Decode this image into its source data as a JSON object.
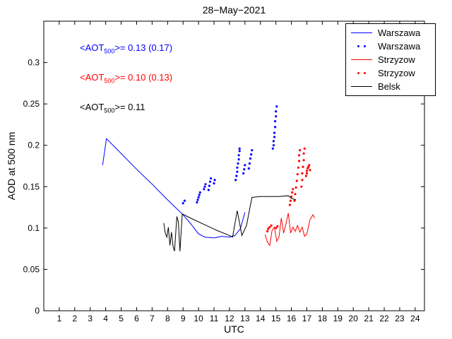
{
  "title": "28−May−2021",
  "axes": {
    "xlabel": "UTC",
    "ylabel": "AOD at 500 nm"
  },
  "annotations": [
    {
      "prefix": "<AOT",
      "sub": "500",
      "suffix": ">= 0.13 (0.17)",
      "color": "#0000ff"
    },
    {
      "prefix": "<AOT",
      "sub": "500",
      "suffix": ">= 0.10 (0.13)",
      "color": "#ff0000"
    },
    {
      "prefix": "<AOT",
      "sub": "500",
      "suffix": ">= 0.11",
      "color": "#000000"
    }
  ],
  "legend": [
    {
      "label": "Warszawa",
      "color": "#0000ff",
      "style": "line"
    },
    {
      "label": "Warszawa",
      "color": "#0000ff",
      "style": "dots"
    },
    {
      "label": "Strzyzow",
      "color": "#ff0000",
      "style": "line"
    },
    {
      "label": "Strzyzow",
      "color": "#ff0000",
      "style": "dots"
    },
    {
      "label": "Belsk",
      "color": "#000000",
      "style": "line"
    }
  ],
  "chart_data": {
    "type": "line",
    "title": "28−May−2021",
    "xlabel": "UTC",
    "ylabel": "AOD at 500 nm",
    "xlim": [
      0,
      24.6
    ],
    "ylim": [
      0,
      0.35
    ],
    "grid": false,
    "legend_position": "top-right",
    "xtick_labels": [
      "1",
      "2",
      "3",
      "4",
      "5",
      "6",
      "7",
      "8",
      "9",
      "10",
      "11",
      "12",
      "13",
      "14",
      "15",
      "16",
      "17",
      "18",
      "19",
      "20",
      "21",
      "22",
      "23",
      "24"
    ],
    "ytick_labels": [
      "0",
      "0.05",
      "0.1",
      "0.15",
      "0.2",
      "0.25",
      "0.3"
    ],
    "series": [
      {
        "name": "Warszawa",
        "style": "line",
        "color": "#0000ff",
        "points": [
          [
            3.8,
            0.176
          ],
          [
            4.05,
            0.208
          ],
          [
            5,
            0.19
          ],
          [
            6,
            0.171
          ],
          [
            7,
            0.153
          ],
          [
            8,
            0.134
          ],
          [
            9,
            0.116
          ],
          [
            9.5,
            0.105
          ],
          [
            10,
            0.093
          ],
          [
            10.4,
            0.089
          ],
          [
            11,
            0.088
          ],
          [
            11.5,
            0.09
          ],
          [
            12,
            0.089
          ],
          [
            12.35,
            0.091
          ],
          [
            12.7,
            0.099
          ],
          [
            13,
            0.119
          ]
        ]
      },
      {
        "name": "Warszawa",
        "style": "scatter",
        "color": "#0000ff",
        "points": [
          [
            9.0,
            0.13
          ],
          [
            9.1,
            0.133
          ],
          [
            9.9,
            0.131
          ],
          [
            9.95,
            0.134
          ],
          [
            10.0,
            0.137
          ],
          [
            10.05,
            0.14
          ],
          [
            10.1,
            0.143
          ],
          [
            10.35,
            0.147
          ],
          [
            10.4,
            0.15
          ],
          [
            10.45,
            0.153
          ],
          [
            10.65,
            0.146
          ],
          [
            10.7,
            0.151
          ],
          [
            10.75,
            0.156
          ],
          [
            10.8,
            0.16
          ],
          [
            11.0,
            0.154
          ],
          [
            11.05,
            0.158
          ],
          [
            12.4,
            0.158
          ],
          [
            12.45,
            0.163
          ],
          [
            12.5,
            0.168
          ],
          [
            12.5,
            0.173
          ],
          [
            12.55,
            0.178
          ],
          [
            12.6,
            0.183
          ],
          [
            12.6,
            0.188
          ],
          [
            12.65,
            0.193
          ],
          [
            12.65,
            0.196
          ],
          [
            12.9,
            0.166
          ],
          [
            12.95,
            0.171
          ],
          [
            13.0,
            0.176
          ],
          [
            13.25,
            0.172
          ],
          [
            13.3,
            0.178
          ],
          [
            13.35,
            0.184
          ],
          [
            13.4,
            0.189
          ],
          [
            13.45,
            0.194
          ],
          [
            14.8,
            0.196
          ],
          [
            14.85,
            0.2
          ],
          [
            14.85,
            0.205
          ],
          [
            14.9,
            0.21
          ],
          [
            14.9,
            0.215
          ],
          [
            14.95,
            0.222
          ],
          [
            14.95,
            0.229
          ],
          [
            15.0,
            0.235
          ],
          [
            15.0,
            0.241
          ],
          [
            15.05,
            0.247
          ]
        ]
      },
      {
        "name": "Strzyzow",
        "style": "line",
        "color": "#ff0000",
        "points": [
          [
            14.3,
            0.092
          ],
          [
            14.45,
            0.083
          ],
          [
            14.6,
            0.079
          ],
          [
            14.75,
            0.097
          ],
          [
            14.9,
            0.101
          ],
          [
            15.05,
            0.084
          ],
          [
            15.2,
            0.089
          ],
          [
            15.35,
            0.112
          ],
          [
            15.5,
            0.094
          ],
          [
            15.65,
            0.105
          ],
          [
            15.8,
            0.118
          ],
          [
            15.95,
            0.094
          ],
          [
            16.1,
            0.101
          ],
          [
            16.25,
            0.096
          ],
          [
            16.4,
            0.103
          ],
          [
            16.55,
            0.095
          ],
          [
            16.7,
            0.101
          ],
          [
            16.85,
            0.09
          ],
          [
            17.0,
            0.093
          ],
          [
            17.2,
            0.11
          ],
          [
            17.4,
            0.116
          ],
          [
            17.5,
            0.112
          ]
        ]
      },
      {
        "name": "Strzyzow",
        "style": "scatter",
        "color": "#ff0000",
        "points": [
          [
            14.45,
            0.096
          ],
          [
            14.5,
            0.099
          ],
          [
            14.6,
            0.101
          ],
          [
            14.7,
            0.103
          ],
          [
            15.0,
            0.1
          ],
          [
            15.1,
            0.102
          ],
          [
            15.9,
            0.128
          ],
          [
            15.95,
            0.133
          ],
          [
            16.0,
            0.138
          ],
          [
            16.05,
            0.143
          ],
          [
            16.1,
            0.147
          ],
          [
            16.2,
            0.133
          ],
          [
            16.25,
            0.141
          ],
          [
            16.3,
            0.149
          ],
          [
            16.35,
            0.157
          ],
          [
            16.4,
            0.165
          ],
          [
            16.45,
            0.173
          ],
          [
            16.5,
            0.181
          ],
          [
            16.5,
            0.188
          ],
          [
            16.55,
            0.194
          ],
          [
            16.65,
            0.15
          ],
          [
            16.7,
            0.158
          ],
          [
            16.7,
            0.166
          ],
          [
            16.75,
            0.174
          ],
          [
            16.8,
            0.182
          ],
          [
            16.8,
            0.19
          ],
          [
            16.85,
            0.196
          ],
          [
            16.95,
            0.163
          ],
          [
            17.0,
            0.166
          ],
          [
            17.0,
            0.169
          ],
          [
            17.05,
            0.172
          ],
          [
            17.1,
            0.174
          ],
          [
            17.15,
            0.176
          ],
          [
            17.2,
            0.17
          ]
        ]
      },
      {
        "name": "Belsk",
        "style": "line",
        "color": "#000000",
        "points": [
          [
            7.75,
            0.106
          ],
          [
            7.85,
            0.094
          ],
          [
            7.95,
            0.089
          ],
          [
            8.05,
            0.101
          ],
          [
            8.15,
            0.079
          ],
          [
            8.25,
            0.095
          ],
          [
            8.35,
            0.078
          ],
          [
            8.45,
            0.072
          ],
          [
            8.6,
            0.114
          ],
          [
            8.7,
            0.107
          ],
          [
            8.8,
            0.072
          ],
          [
            8.95,
            0.117
          ],
          [
            9.6,
            0.111
          ],
          [
            10.4,
            0.104
          ],
          [
            11.2,
            0.097
          ],
          [
            12.0,
            0.091
          ],
          [
            12.2,
            0.089
          ],
          [
            12.5,
            0.121
          ],
          [
            12.8,
            0.091
          ],
          [
            13.1,
            0.103
          ],
          [
            13.45,
            0.137
          ],
          [
            14.0,
            0.138
          ],
          [
            14.6,
            0.138
          ],
          [
            15.2,
            0.138
          ],
          [
            15.8,
            0.139
          ],
          [
            16.0,
            0.136
          ],
          [
            16.3,
            0.134
          ]
        ]
      }
    ]
  }
}
